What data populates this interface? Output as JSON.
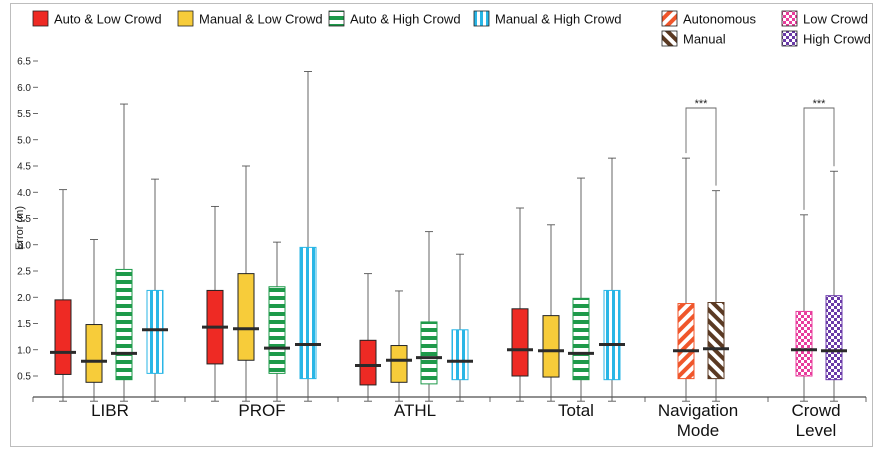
{
  "chart_data": {
    "type": "box",
    "ylabel": "Error (m)",
    "yticks": [
      "0.5",
      "1.0",
      "1.5",
      "2.0",
      "2.5",
      "3.0",
      "3.5",
      "4.0",
      "4.5",
      "5.0",
      "5.5",
      "6.0",
      "6.5"
    ],
    "ylim": [
      0,
      6.6
    ],
    "legend": [
      {
        "label": "Auto & Low Crowd",
        "pattern": "solid-red"
      },
      {
        "label": "Manual & Low Crowd",
        "pattern": "solid-yellow"
      },
      {
        "label": "Auto & High Crowd",
        "pattern": "hstripe-green"
      },
      {
        "label": "Manual & High Crowd",
        "pattern": "vstripe-cyan"
      },
      {
        "label": "Autonomous",
        "pattern": "diag-orange"
      },
      {
        "label": "Manual",
        "pattern": "diag-brown"
      },
      {
        "label": "Low Crowd",
        "pattern": "check-pink"
      },
      {
        "label": "High Crowd",
        "pattern": "check-purple"
      }
    ],
    "groups": [
      {
        "label": "LIBR",
        "boxes": [
          {
            "pattern": "solid-red",
            "min": 0.02,
            "q1": 0.53,
            "median": 0.95,
            "q3": 1.95,
            "max": 4.05
          },
          {
            "pattern": "solid-yellow",
            "min": 0.02,
            "q1": 0.38,
            "median": 0.78,
            "q3": 1.48,
            "max": 3.1
          },
          {
            "pattern": "hstripe-green",
            "min": 0.02,
            "q1": 0.43,
            "median": 0.93,
            "q3": 2.53,
            "max": 5.68
          },
          {
            "pattern": "vstripe-cyan",
            "min": 0.02,
            "q1": 0.55,
            "median": 1.38,
            "q3": 2.13,
            "max": 4.25
          }
        ]
      },
      {
        "label": "PROF",
        "boxes": [
          {
            "pattern": "solid-red",
            "min": 0.02,
            "q1": 0.73,
            "median": 1.43,
            "q3": 2.13,
            "max": 3.73
          },
          {
            "pattern": "solid-yellow",
            "min": 0.02,
            "q1": 0.8,
            "median": 1.4,
            "q3": 2.45,
            "max": 4.5
          },
          {
            "pattern": "hstripe-green",
            "min": 0.02,
            "q1": 0.55,
            "median": 1.03,
            "q3": 2.2,
            "max": 3.05
          },
          {
            "pattern": "vstripe-cyan",
            "min": 0.02,
            "q1": 0.45,
            "median": 1.1,
            "q3": 2.95,
            "max": 6.3
          }
        ]
      },
      {
        "label": "ATHL",
        "boxes": [
          {
            "pattern": "solid-red",
            "min": 0.02,
            "q1": 0.33,
            "median": 0.7,
            "q3": 1.18,
            "max": 2.45
          },
          {
            "pattern": "solid-yellow",
            "min": 0.02,
            "q1": 0.38,
            "median": 0.8,
            "q3": 1.08,
            "max": 2.12
          },
          {
            "pattern": "hstripe-green",
            "min": 0.02,
            "q1": 0.35,
            "median": 0.85,
            "q3": 1.53,
            "max": 3.25
          },
          {
            "pattern": "vstripe-cyan",
            "min": 0.02,
            "q1": 0.43,
            "median": 0.78,
            "q3": 1.38,
            "max": 2.82
          }
        ]
      },
      {
        "label": "Total",
        "boxes": [
          {
            "pattern": "solid-red",
            "min": 0.02,
            "q1": 0.5,
            "median": 1.0,
            "q3": 1.78,
            "max": 3.7
          },
          {
            "pattern": "solid-yellow",
            "min": 0.02,
            "q1": 0.48,
            "median": 0.98,
            "q3": 1.65,
            "max": 3.38
          },
          {
            "pattern": "hstripe-green",
            "min": 0.02,
            "q1": 0.43,
            "median": 0.93,
            "q3": 1.98,
            "max": 4.27
          },
          {
            "pattern": "vstripe-cyan",
            "min": 0.02,
            "q1": 0.43,
            "median": 1.1,
            "q3": 2.13,
            "max": 4.65
          }
        ]
      },
      {
        "label": "Navigation Mode",
        "boxes": [
          {
            "pattern": "diag-orange",
            "min": 0.02,
            "q1": 0.45,
            "median": 0.98,
            "q3": 1.88,
            "max": 4.65
          },
          {
            "pattern": "diag-brown",
            "min": 0.02,
            "q1": 0.45,
            "median": 1.02,
            "q3": 1.9,
            "max": 4.03
          }
        ],
        "significance": "***"
      },
      {
        "label": "Crowd Level",
        "boxes": [
          {
            "pattern": "check-pink",
            "min": 0.02,
            "q1": 0.5,
            "median": 1.0,
            "q3": 1.73,
            "max": 3.57
          },
          {
            "pattern": "check-purple",
            "min": 0.02,
            "q1": 0.43,
            "median": 0.98,
            "q3": 2.03,
            "max": 4.4
          }
        ],
        "significance": "***"
      }
    ]
  }
}
